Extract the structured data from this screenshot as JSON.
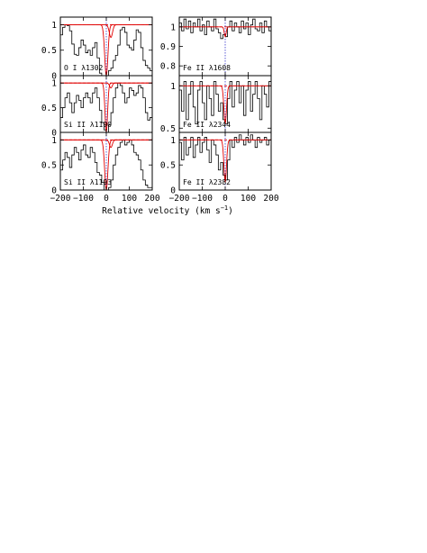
{
  "figure": {
    "xlabel_text": "Relative velocity (km s",
    "xlabel_sup": "−1",
    "xlabel_close": ")"
  },
  "chart_data": [
    {
      "type": "line",
      "label": "O I λ1302",
      "xlim": [
        -200,
        200
      ],
      "ylim": [
        0,
        1.15
      ],
      "xticks": [
        "−200",
        "−100",
        "0",
        "100",
        "200"
      ],
      "yticks": [
        {
          "value": 0,
          "label": "0"
        },
        {
          "value": 0.5,
          "label": "0.5"
        },
        {
          "value": 1,
          "label": "1"
        }
      ],
      "spectrum": {
        "x": [
          -200,
          -190,
          -180,
          -170,
          -160,
          -150,
          -140,
          -130,
          -120,
          -110,
          -100,
          -90,
          -80,
          -70,
          -60,
          -50,
          -40,
          -30,
          -20,
          -10,
          0,
          10,
          20,
          30,
          40,
          50,
          60,
          70,
          80,
          90,
          100,
          110,
          120,
          130,
          140,
          150,
          160,
          170,
          180,
          190,
          200
        ],
        "y": [
          0.8,
          0.95,
          1.0,
          0.98,
          0.88,
          0.62,
          0.42,
          0.4,
          0.55,
          0.7,
          0.6,
          0.45,
          0.5,
          0.4,
          0.55,
          0.65,
          0.35,
          0.05,
          0.0,
          0.0,
          0.0,
          0.1,
          0.15,
          0.3,
          0.4,
          0.6,
          0.9,
          0.95,
          0.85,
          0.6,
          0.55,
          0.5,
          0.7,
          0.9,
          0.85,
          0.55,
          0.3,
          0.2,
          0.15,
          0.1,
          0.1
        ]
      },
      "model": {
        "continuum": 1,
        "center": 0,
        "depth": 1.0,
        "width": 10,
        "shifted": {
          "offset": 20,
          "depth": 0.25,
          "width": 10
        }
      }
    },
    {
      "type": "line",
      "label": "Si II λ1190",
      "xlim": [
        -200,
        200
      ],
      "ylim": [
        0,
        1.15
      ],
      "xticks": [
        "−200",
        "−100",
        "0",
        "100",
        "200"
      ],
      "yticks": [
        {
          "value": 0,
          "label": "0"
        },
        {
          "value": 0.5,
          "label": "0.5"
        },
        {
          "value": 1,
          "label": "1"
        }
      ],
      "spectrum": {
        "x": [
          -200,
          -190,
          -180,
          -170,
          -160,
          -150,
          -140,
          -130,
          -120,
          -110,
          -100,
          -90,
          -80,
          -70,
          -60,
          -50,
          -40,
          -30,
          -20,
          -10,
          0,
          10,
          20,
          30,
          40,
          50,
          60,
          70,
          80,
          90,
          100,
          110,
          120,
          130,
          140,
          150,
          160,
          170,
          180,
          190,
          200
        ],
        "y": [
          0.3,
          0.5,
          0.7,
          0.8,
          0.6,
          0.4,
          0.6,
          0.75,
          0.65,
          0.5,
          0.7,
          0.8,
          0.7,
          0.6,
          0.8,
          0.9,
          0.7,
          0.45,
          0.2,
          0.05,
          0.0,
          0.15,
          0.4,
          0.7,
          0.9,
          1.0,
          0.95,
          0.8,
          0.6,
          0.7,
          0.9,
          0.85,
          0.75,
          0.8,
          0.95,
          0.9,
          0.7,
          0.4,
          0.25,
          0.3,
          0.3
        ]
      },
      "model": {
        "continuum": 1,
        "center": 0,
        "depth": 1.0,
        "width": 8,
        "shifted": {
          "offset": 20,
          "depth": 0.1,
          "width": 8
        }
      }
    },
    {
      "type": "line",
      "label": "Si II λ1193",
      "xlim": [
        -200,
        200
      ],
      "ylim": [
        0,
        1.15
      ],
      "xticks": [
        "−200",
        "−100",
        "0",
        "100",
        "200"
      ],
      "yticks": [
        {
          "value": 0,
          "label": "0"
        },
        {
          "value": 0.5,
          "label": "0.5"
        },
        {
          "value": 1,
          "label": "1"
        }
      ],
      "spectrum": {
        "x": [
          -200,
          -190,
          -180,
          -170,
          -160,
          -150,
          -140,
          -130,
          -120,
          -110,
          -100,
          -90,
          -80,
          -70,
          -60,
          -50,
          -40,
          -30,
          -20,
          -10,
          0,
          10,
          20,
          30,
          40,
          50,
          60,
          70,
          80,
          90,
          100,
          110,
          120,
          130,
          140,
          150,
          160,
          170,
          180,
          190,
          200
        ],
        "y": [
          0.4,
          0.6,
          0.75,
          0.65,
          0.45,
          0.7,
          0.85,
          0.75,
          0.6,
          0.8,
          0.9,
          0.7,
          0.65,
          0.85,
          0.75,
          0.55,
          0.35,
          0.3,
          0.15,
          0.0,
          0.0,
          0.05,
          0.2,
          0.5,
          0.7,
          0.85,
          0.95,
          1.0,
          0.9,
          0.95,
          1.0,
          0.9,
          0.75,
          0.7,
          0.6,
          0.4,
          0.2,
          0.1,
          0.05,
          0.05,
          0.1
        ]
      },
      "model": {
        "continuum": 1,
        "center": 0,
        "depth": 1.0,
        "width": 10,
        "shifted": {
          "offset": 20,
          "depth": 0.15,
          "width": 9
        }
      }
    },
    {
      "type": "line",
      "label": "Fe II λ1608",
      "xlim": [
        -200,
        200
      ],
      "ylim": [
        0.75,
        1.05
      ],
      "xticks": [
        "−200",
        "−100",
        "0",
        "100",
        "200"
      ],
      "yticks": [
        {
          "value": 0.8,
          "label": "0.8"
        },
        {
          "value": 0.9,
          "label": "0.9"
        },
        {
          "value": 1,
          "label": "1"
        }
      ],
      "spectrum": {
        "x": [
          -200,
          -190,
          -180,
          -170,
          -160,
          -150,
          -140,
          -130,
          -120,
          -110,
          -100,
          -90,
          -80,
          -70,
          -60,
          -50,
          -40,
          -30,
          -20,
          -10,
          0,
          10,
          20,
          30,
          40,
          50,
          60,
          70,
          80,
          90,
          100,
          110,
          120,
          130,
          140,
          150,
          160,
          170,
          180,
          190,
          200
        ],
        "y": [
          1.02,
          0.98,
          1.04,
          0.99,
          1.03,
          0.97,
          1.02,
          1.0,
          1.04,
          0.98,
          1.01,
          0.96,
          1.03,
          1.0,
          0.98,
          1.04,
          0.99,
          0.97,
          0.94,
          0.96,
          0.95,
          1.0,
          1.03,
          0.98,
          1.02,
          1.0,
          0.97,
          1.03,
          0.99,
          1.02,
          0.96,
          1.01,
          1.04,
          0.99,
          0.98,
          1.02,
          0.97,
          1.03,
          1.0,
          0.98,
          1.02
        ]
      },
      "model": {
        "continuum": 1,
        "center": 0,
        "depth": 0.05,
        "width": 6
      }
    },
    {
      "type": "line",
      "label": "Fe II λ2344",
      "xlim": [
        -200,
        200
      ],
      "ylim": [
        0.45,
        1.12
      ],
      "xticks": [
        "−200",
        "−100",
        "0",
        "100",
        "200"
      ],
      "yticks": [
        {
          "value": 0.5,
          "label": "0.5"
        },
        {
          "value": 1,
          "label": "1"
        }
      ],
      "spectrum": {
        "x": [
          -200,
          -190,
          -180,
          -170,
          -160,
          -150,
          -140,
          -130,
          -120,
          -110,
          -100,
          -90,
          -80,
          -70,
          -60,
          -50,
          -40,
          -30,
          -20,
          -10,
          0,
          10,
          20,
          30,
          40,
          50,
          60,
          70,
          80,
          90,
          100,
          110,
          120,
          130,
          140,
          150,
          160,
          170,
          180,
          190,
          200
        ],
        "y": [
          0.95,
          0.7,
          1.05,
          0.6,
          0.9,
          1.05,
          0.75,
          0.55,
          0.95,
          1.05,
          0.8,
          0.6,
          1.0,
          0.85,
          0.65,
          1.05,
          0.9,
          0.7,
          0.8,
          0.6,
          0.55,
          0.85,
          1.05,
          0.75,
          0.95,
          1.05,
          0.8,
          1.0,
          0.65,
          0.95,
          1.05,
          0.7,
          0.9,
          1.05,
          0.85,
          0.6,
          1.0,
          0.9,
          0.75,
          1.05,
          0.95
        ]
      },
      "model": {
        "continuum": 1,
        "center": 0,
        "depth": 0.45,
        "width": 8
      }
    },
    {
      "type": "line",
      "label": "Fe II λ2382",
      "xlim": [
        -200,
        200
      ],
      "ylim": [
        0,
        1.15
      ],
      "xticks": [
        "−200",
        "−100",
        "0",
        "100",
        "200"
      ],
      "yticks": [
        {
          "value": 0,
          "label": "0"
        },
        {
          "value": 0.5,
          "label": "0.5"
        },
        {
          "value": 1,
          "label": "1"
        }
      ],
      "spectrum": {
        "x": [
          -200,
          -190,
          -180,
          -170,
          -160,
          -150,
          -140,
          -130,
          -120,
          -110,
          -100,
          -90,
          -80,
          -70,
          -60,
          -50,
          -40,
          -30,
          -20,
          -10,
          0,
          10,
          20,
          30,
          40,
          50,
          60,
          70,
          80,
          90,
          100,
          110,
          120,
          130,
          140,
          150,
          160,
          170,
          180,
          190,
          200
        ],
        "y": [
          0.95,
          0.6,
          1.05,
          0.7,
          0.85,
          1.05,
          0.65,
          0.9,
          1.05,
          0.75,
          0.95,
          1.05,
          0.8,
          0.55,
          1.0,
          0.9,
          0.7,
          0.4,
          0.55,
          0.3,
          0.2,
          0.6,
          1.0,
          0.85,
          1.05,
          0.95,
          1.1,
          1.0,
          0.9,
          1.05,
          0.95,
          1.1,
          1.0,
          0.85,
          1.05,
          0.95,
          1.0,
          1.05,
          0.9,
          1.0,
          1.05
        ]
      },
      "model": {
        "continuum": 1,
        "center": 0,
        "depth": 0.85,
        "width": 8
      }
    }
  ]
}
